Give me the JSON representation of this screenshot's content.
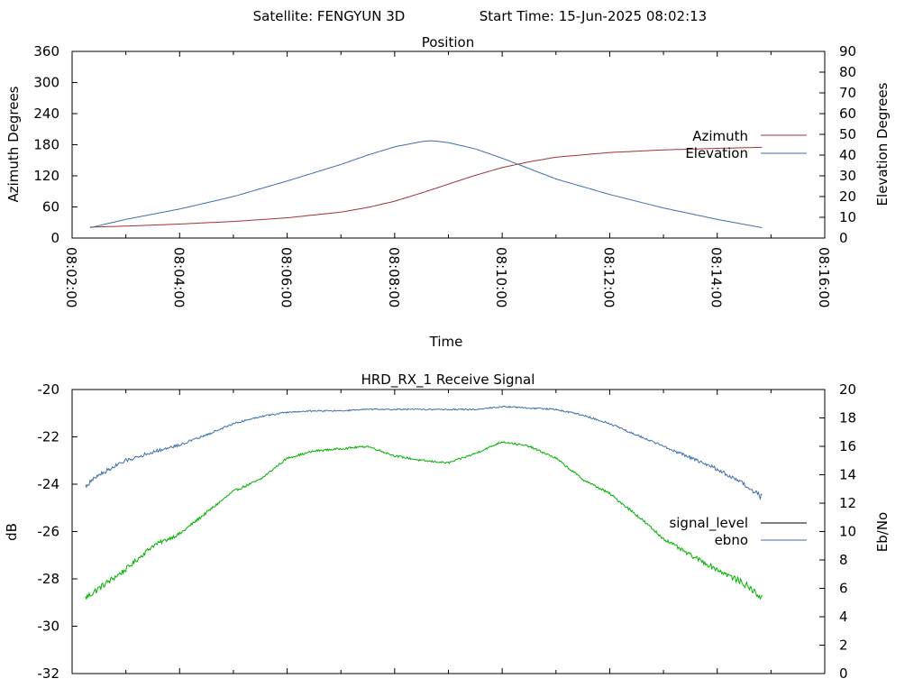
{
  "header": {
    "satellite_label": "Satellite: FENGYUN 3D",
    "start_time_label": "Start Time: 15-Jun-2025 08:02:13"
  },
  "colors": {
    "azimuth": "#a0303a",
    "elevation": "#3f6fa8",
    "signal_level": "#00b000",
    "ebno": "#3f6fa8",
    "signal_level_legend": "#000000"
  },
  "chart_data": [
    {
      "type": "line",
      "title": "Position",
      "xlabel": "Time",
      "ylabel": "Azimuth Degrees",
      "y2label": "Elevation Degrees",
      "xlim": [
        "08:02:00",
        "08:16:00"
      ],
      "ylim": [
        0,
        360
      ],
      "y2lim": [
        0,
        90
      ],
      "x_ticks": [
        "08:02:00",
        "08:04:00",
        "08:06:00",
        "08:08:00",
        "08:10:00",
        "08:12:00",
        "08:14:00",
        "08:16:00"
      ],
      "y_ticks": [
        "0",
        "60",
        "120",
        "180",
        "240",
        "300",
        "360"
      ],
      "y2_ticks": [
        "0",
        "10",
        "20",
        "30",
        "40",
        "50",
        "60",
        "70",
        "80",
        "90"
      ],
      "legend_position": "right",
      "series": [
        {
          "name": "Azimuth",
          "axis": "y",
          "color": "#a0303a",
          "x": [
            "08:02:20",
            "08:03:00",
            "08:04:00",
            "08:05:00",
            "08:06:00",
            "08:07:00",
            "08:07:30",
            "08:08:00",
            "08:08:30",
            "08:09:00",
            "08:09:30",
            "08:10:00",
            "08:10:30",
            "08:11:00",
            "08:12:00",
            "08:13:00",
            "08:14:00",
            "08:14:50"
          ],
          "values": [
            21,
            23,
            27,
            32,
            39,
            50,
            59,
            71,
            87,
            104,
            121,
            136,
            147,
            156,
            165,
            170,
            173,
            175
          ]
        },
        {
          "name": "Elevation",
          "axis": "y2",
          "color": "#3f6fa8",
          "x": [
            "08:02:20",
            "08:03:00",
            "08:04:00",
            "08:05:00",
            "08:06:00",
            "08:07:00",
            "08:07:30",
            "08:08:00",
            "08:08:30",
            "08:08:40",
            "08:09:00",
            "08:09:30",
            "08:10:00",
            "08:10:30",
            "08:11:00",
            "08:12:00",
            "08:13:00",
            "08:14:00",
            "08:14:50"
          ],
          "values": [
            5,
            9,
            14,
            20,
            27.5,
            35.5,
            40,
            44,
            46.5,
            47,
            46,
            43,
            38.5,
            33.5,
            28.5,
            21,
            14.5,
            9,
            5
          ]
        }
      ]
    },
    {
      "type": "line",
      "title": "HRD_RX_1 Receive Signal",
      "xlabel": "",
      "ylabel": "dB",
      "y2label": "Eb/No",
      "xlim": [
        "08:02:00",
        "08:16:00"
      ],
      "ylim": [
        -32,
        -20
      ],
      "y2lim": [
        0,
        20
      ],
      "y_ticks": [
        "-32",
        "-30",
        "-28",
        "-26",
        "-24",
        "-22",
        "-20"
      ],
      "y2_ticks": [
        "0",
        "2",
        "4",
        "6",
        "8",
        "10",
        "12",
        "14",
        "16",
        "18",
        "20"
      ],
      "legend_position": "right",
      "series": [
        {
          "name": "signal_level",
          "axis": "y",
          "color": "#00b000",
          "x": [
            "08:02:15",
            "08:02:30",
            "08:03:00",
            "08:03:30",
            "08:04:00",
            "08:04:30",
            "08:05:00",
            "08:05:30",
            "08:06:00",
            "08:06:30",
            "08:07:00",
            "08:07:30",
            "08:08:00",
            "08:08:30",
            "08:09:00",
            "08:09:30",
            "08:10:00",
            "08:10:30",
            "08:11:00",
            "08:11:30",
            "08:12:00",
            "08:12:30",
            "08:13:00",
            "08:13:30",
            "08:14:00",
            "08:14:30",
            "08:14:50"
          ],
          "values": [
            -28.8,
            -28.4,
            -27.6,
            -26.6,
            -26.1,
            -25.2,
            -24.3,
            -23.8,
            -22.9,
            -22.6,
            -22.5,
            -22.4,
            -22.8,
            -23.0,
            -23.1,
            -22.7,
            -22.2,
            -22.4,
            -22.9,
            -23.8,
            -24.4,
            -25.3,
            -26.3,
            -27.0,
            -27.6,
            -28.2,
            -28.8
          ]
        },
        {
          "name": "ebno",
          "axis": "y2",
          "color": "#3f6fa8",
          "x": [
            "08:02:15",
            "08:02:30",
            "08:03:00",
            "08:03:30",
            "08:04:00",
            "08:04:30",
            "08:05:00",
            "08:05:30",
            "08:06:00",
            "08:06:30",
            "08:07:00",
            "08:07:30",
            "08:08:00",
            "08:08:30",
            "08:09:00",
            "08:09:30",
            "08:10:00",
            "08:10:30",
            "08:11:00",
            "08:11:30",
            "08:12:00",
            "08:12:30",
            "08:13:00",
            "08:13:30",
            "08:14:00",
            "08:14:30",
            "08:14:50"
          ],
          "values": [
            13.2,
            14.0,
            15.0,
            15.6,
            16.1,
            16.8,
            17.6,
            18.1,
            18.4,
            18.5,
            18.5,
            18.6,
            18.6,
            18.6,
            18.6,
            18.6,
            18.8,
            18.7,
            18.6,
            18.2,
            17.6,
            16.8,
            16.0,
            15.2,
            14.4,
            13.3,
            12.4
          ]
        }
      ]
    }
  ]
}
